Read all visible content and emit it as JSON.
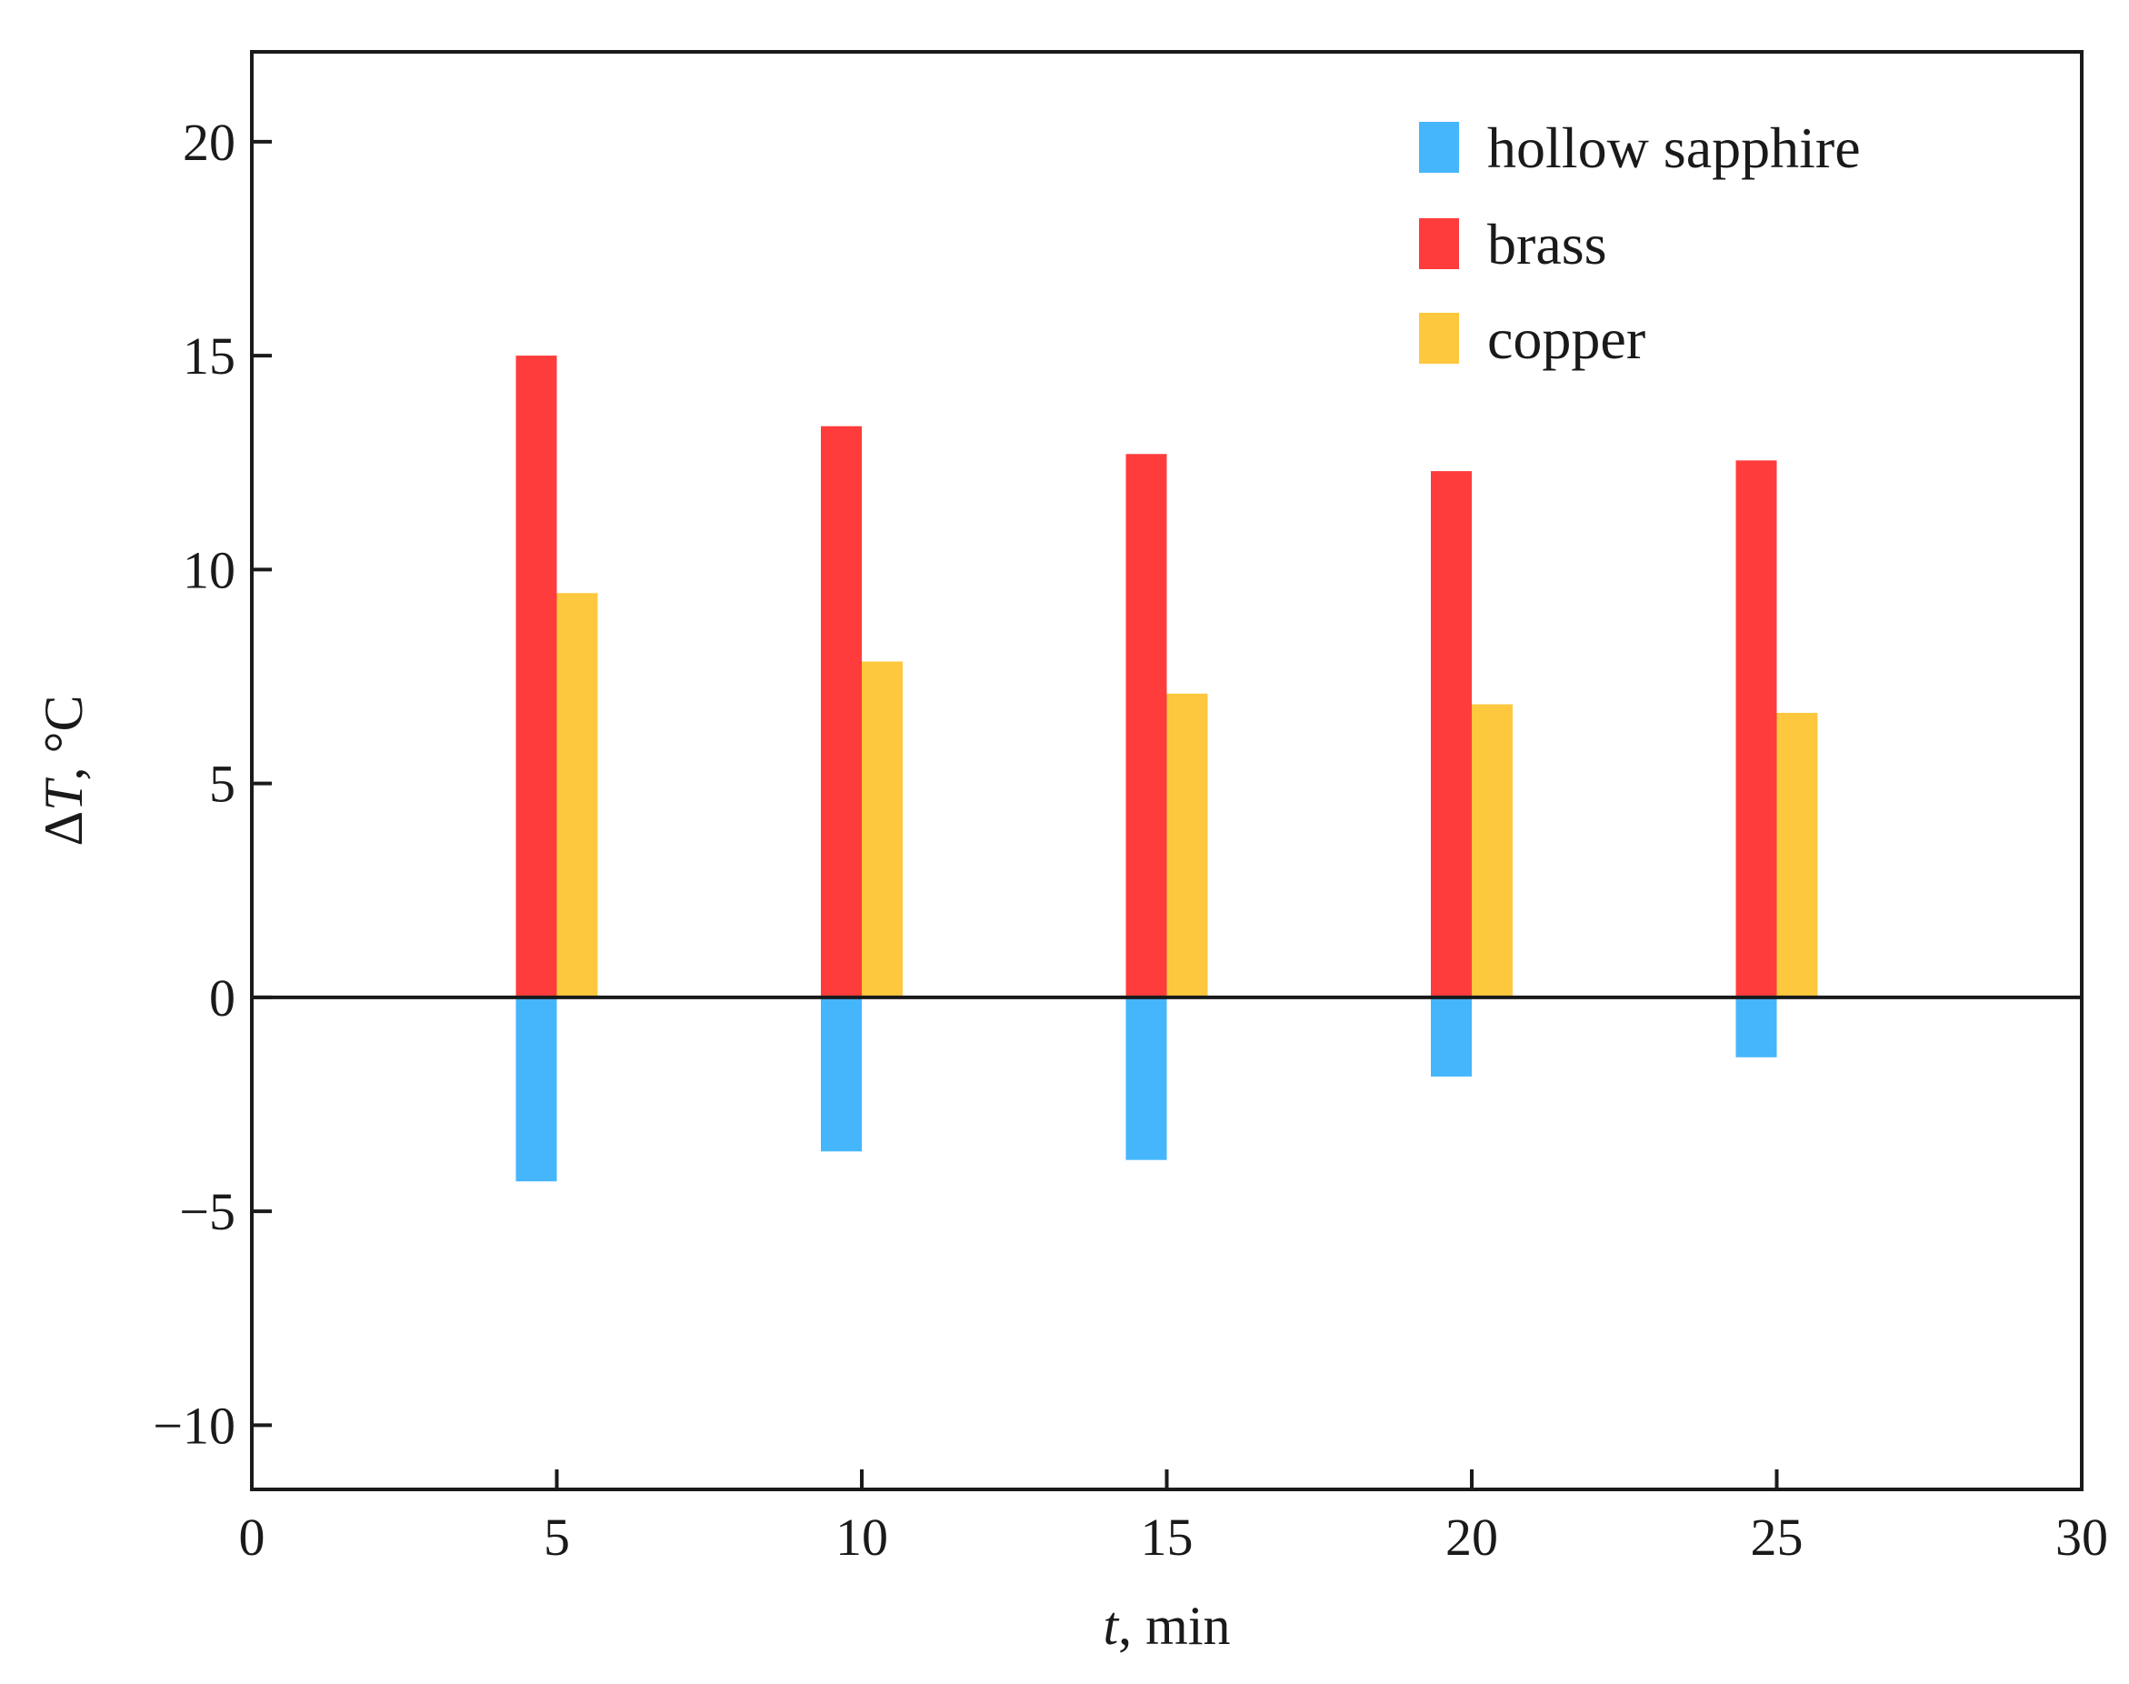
{
  "chart_data": {
    "type": "bar",
    "x": [
      5,
      10,
      15,
      20,
      25
    ],
    "series": [
      {
        "name": "hollow sapphire",
        "color": "#45b6fc",
        "values": [
          -4.3,
          -3.6,
          -3.8,
          -1.85,
          -1.4
        ]
      },
      {
        "name": "brass",
        "color": "#fe3c3c",
        "values": [
          15.0,
          13.35,
          12.7,
          12.3,
          12.55
        ]
      },
      {
        "name": "copper",
        "color": "#fec83e",
        "values": [
          9.45,
          7.85,
          7.1,
          6.85,
          6.65
        ]
      }
    ],
    "xlabel": {
      "var": "t",
      "rest": ", min"
    },
    "ylabel": {
      "pre": "Δ",
      "var": "T",
      "rest": ", °C"
    },
    "xlim": [
      0,
      30
    ],
    "ylim": [
      -11.5,
      22.1
    ],
    "xticks": [
      0,
      5,
      10,
      15,
      20,
      25,
      30
    ],
    "yticks": [
      -10,
      -5,
      0,
      5,
      10,
      15,
      20
    ],
    "ytick_labels": [
      "−10",
      "−5",
      "0",
      "5",
      "10",
      "15",
      "20"
    ],
    "zero_line": true,
    "grid": false,
    "legend_position": "top-right"
  }
}
